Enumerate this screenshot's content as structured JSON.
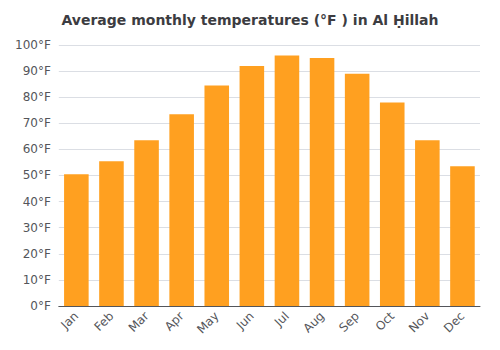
{
  "chart_data": {
    "type": "bar",
    "title": "Average monthly temperatures (°F ) in Al Ḥillah",
    "categories": [
      "Jan",
      "Feb",
      "Mar",
      "Apr",
      "May",
      "Jun",
      "Jul",
      "Aug",
      "Sep",
      "Oct",
      "Nov",
      "Dec"
    ],
    "values": [
      50.5,
      55.5,
      63.5,
      73.5,
      84.5,
      92,
      96,
      95,
      89,
      78,
      63.5,
      53.5
    ],
    "color": "#FFA020",
    "ylim": [
      0,
      100
    ],
    "yticks": [
      {
        "value": 0,
        "label": "0°F"
      },
      {
        "value": 10,
        "label": "10°F"
      },
      {
        "value": 20,
        "label": "20°F"
      },
      {
        "value": 30,
        "label": "30°F"
      },
      {
        "value": 40,
        "label": "40°F"
      },
      {
        "value": 50,
        "label": "50°F"
      },
      {
        "value": 60,
        "label": "60°F"
      },
      {
        "value": 70,
        "label": "70°F"
      },
      {
        "value": 80,
        "label": "80°F"
      },
      {
        "value": 90,
        "label": "90°F"
      },
      {
        "value": 100,
        "label": "100°F"
      }
    ],
    "grid": true
  }
}
